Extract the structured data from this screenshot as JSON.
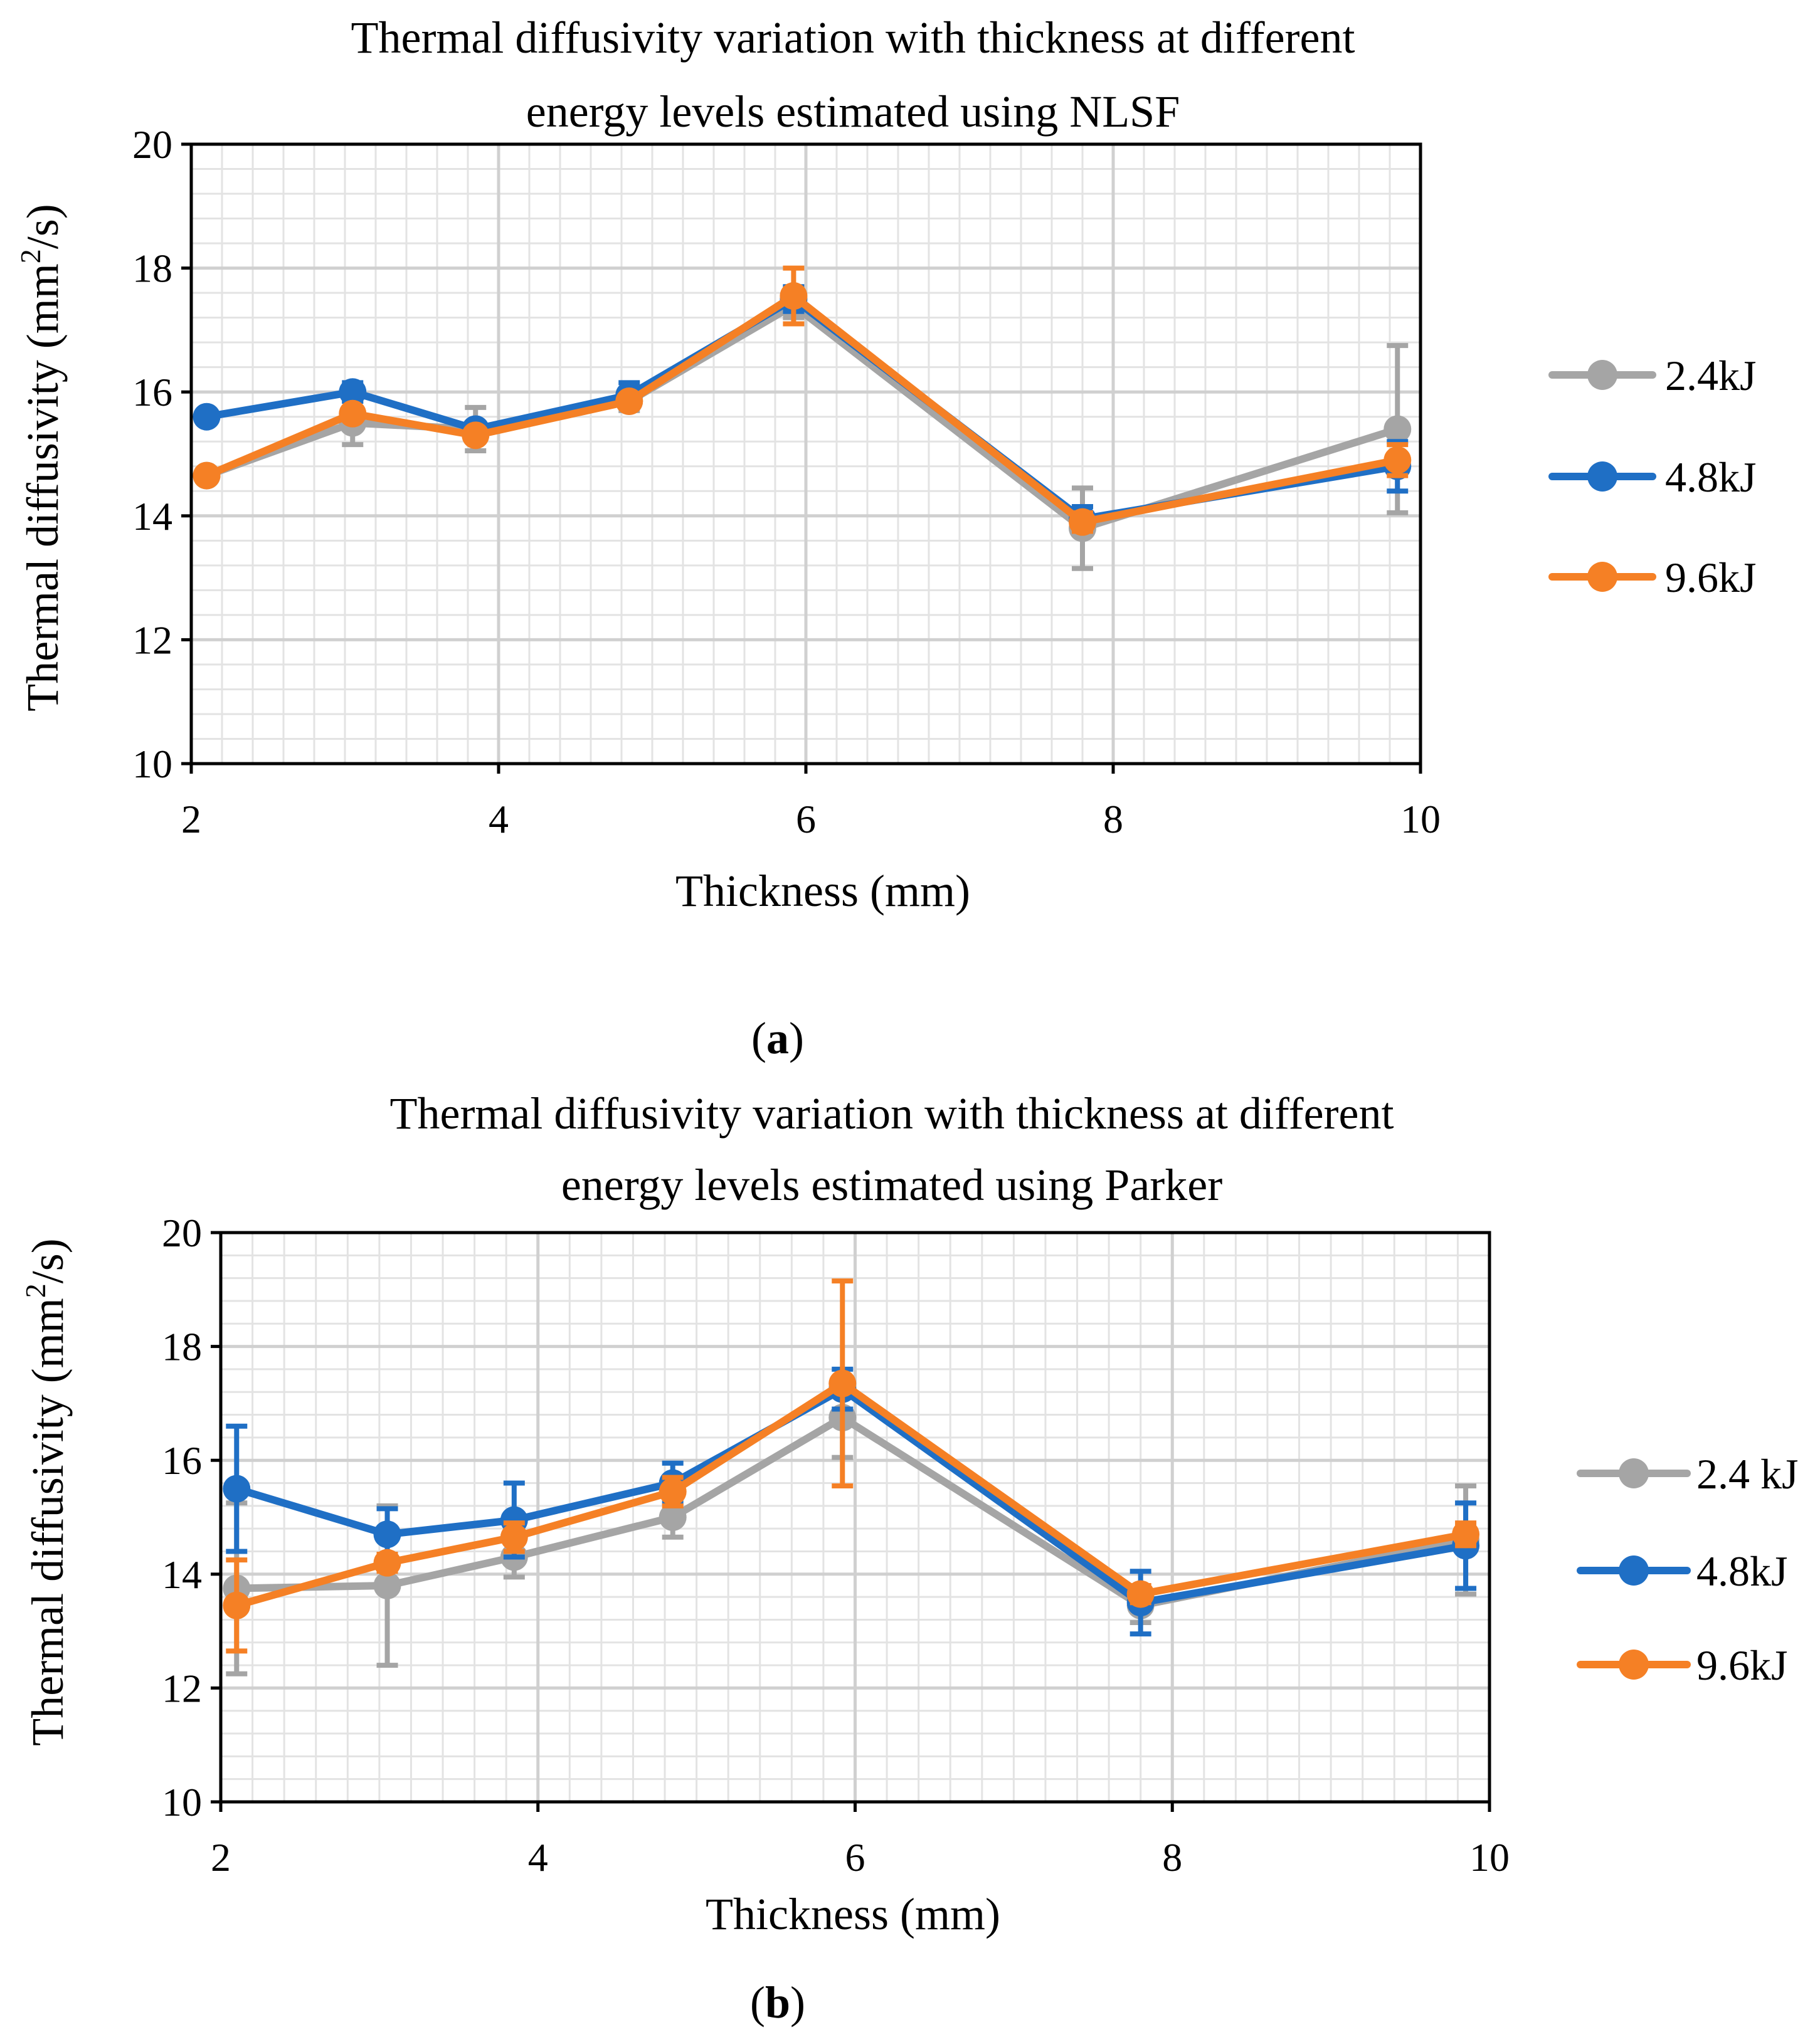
{
  "figure": {
    "panels": [
      {
        "label_open": "(",
        "label_letter": "a",
        "label_close": ")"
      },
      {
        "label_open": "(",
        "label_letter": "b",
        "label_close": ")"
      }
    ]
  },
  "colors": {
    "gray": "#A5A5A5",
    "blue": "#1F6FC5",
    "orange": "#F58025",
    "grid_major": "#D0D0D0",
    "grid_minor": "#E3E3E3",
    "axis": "#000000"
  },
  "chart_data": [
    {
      "type": "line",
      "title_lines": [
        "Thermal diffusivity variation with thickness at different",
        "energy levels estimated using NLSF"
      ],
      "xlabel": "Thickness (mm)",
      "ylabel_pre": "Thermal diffusivity (mm",
      "ylabel_sup": "2",
      "ylabel_post": "/s)",
      "xlim": [
        2,
        10
      ],
      "ylim": [
        10,
        20
      ],
      "xticks": [
        2,
        4,
        6,
        8,
        10
      ],
      "yticks": [
        10,
        12,
        14,
        16,
        18,
        20
      ],
      "x_tick_labels": [
        "2",
        "4",
        "6",
        "8",
        "10"
      ],
      "y_tick_labels": [
        "10",
        "12",
        "14",
        "16",
        "18",
        "20"
      ],
      "grid": true,
      "legend_position": "right",
      "series": [
        {
          "name": "2.4kJ",
          "color_key": "gray",
          "x": [
            2.1,
            3.05,
            3.85,
            4.85,
            5.92,
            7.8,
            9.85
          ],
          "y": [
            14.65,
            15.5,
            15.4,
            15.85,
            17.4,
            13.8,
            15.4
          ],
          "err": [
            0.1,
            0.35,
            0.35,
            0.15,
            0.2,
            0.65,
            1.35
          ]
        },
        {
          "name": "4.8kJ",
          "color_key": "blue",
          "x": [
            2.1,
            3.05,
            3.85,
            4.85,
            5.92,
            7.8,
            9.85
          ],
          "y": [
            15.6,
            16.0,
            15.4,
            15.95,
            17.5,
            13.95,
            14.8
          ],
          "err": [
            0.1,
            0.15,
            0.1,
            0.2,
            0.2,
            0.2,
            0.4
          ]
        },
        {
          "name": "9.6kJ",
          "color_key": "orange",
          "x": [
            2.1,
            3.05,
            3.85,
            4.85,
            5.92,
            7.8,
            9.85
          ],
          "y": [
            14.65,
            15.65,
            15.3,
            15.85,
            17.55,
            13.9,
            14.9
          ],
          "err": [
            0.05,
            0.1,
            0.1,
            0.1,
            0.45,
            0.15,
            0.25
          ]
        }
      ]
    },
    {
      "type": "line",
      "title_lines": [
        "Thermal diffusivity variation with thickness at different",
        "energy levels estimated using Parker"
      ],
      "xlabel": "Thickness (mm)",
      "ylabel_pre": "Thermal diffusivity (mm",
      "ylabel_sup": "2",
      "ylabel_post": "/s)",
      "xlim": [
        2,
        10
      ],
      "ylim": [
        10,
        20
      ],
      "xticks": [
        2,
        4,
        6,
        8,
        10
      ],
      "yticks": [
        10,
        12,
        14,
        16,
        18,
        20
      ],
      "x_tick_labels": [
        "2",
        "4",
        "6",
        "8",
        "10"
      ],
      "y_tick_labels": [
        "10",
        "12",
        "14",
        "16",
        "18",
        "20"
      ],
      "grid": true,
      "legend_position": "right",
      "series": [
        {
          "name": "2.4 kJ",
          "color_key": "gray",
          "x": [
            2.1,
            3.05,
            3.85,
            4.85,
            5.92,
            7.8,
            9.85
          ],
          "y": [
            13.75,
            13.8,
            14.3,
            15.0,
            16.75,
            13.45,
            14.6
          ],
          "err": [
            1.5,
            1.4,
            0.35,
            0.35,
            0.7,
            0.3,
            0.95
          ]
        },
        {
          "name": "4.8kJ",
          "color_key": "blue",
          "x": [
            2.1,
            3.05,
            3.85,
            4.85,
            5.92,
            7.8,
            9.85
          ],
          "y": [
            15.5,
            14.7,
            14.95,
            15.6,
            17.25,
            13.5,
            14.5
          ],
          "err": [
            1.1,
            0.45,
            0.65,
            0.35,
            0.35,
            0.55,
            0.75
          ]
        },
        {
          "name": "9.6kJ",
          "color_key": "orange",
          "x": [
            2.1,
            3.05,
            3.85,
            4.85,
            5.92,
            7.8,
            9.85
          ],
          "y": [
            13.45,
            14.2,
            14.65,
            15.45,
            17.35,
            13.65,
            14.7
          ],
          "err": [
            0.8,
            0.15,
            0.25,
            0.25,
            1.8,
            0.15,
            0.2
          ]
        }
      ]
    }
  ]
}
